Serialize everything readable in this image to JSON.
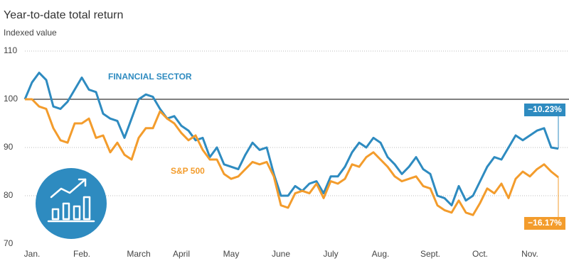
{
  "chart_data": {
    "type": "line",
    "title": "Year-to-date total return",
    "subtitle": "Indexed value",
    "categories": [
      null,
      "Jan.",
      null,
      null,
      null,
      null,
      null,
      null,
      "Feb.",
      null,
      null,
      null,
      null,
      null,
      null,
      null,
      "March",
      null,
      null,
      null,
      null,
      null,
      "April",
      null,
      null,
      null,
      null,
      null,
      null,
      "May",
      null,
      null,
      null,
      null,
      null,
      null,
      "June",
      null,
      null,
      null,
      null,
      null,
      null,
      "July",
      null,
      null,
      null,
      null,
      null,
      null,
      "Aug.",
      null,
      null,
      null,
      null,
      null,
      null,
      "Sept.",
      null,
      null,
      null,
      null,
      null,
      null,
      "Oct.",
      null,
      null,
      null,
      null,
      null,
      null,
      "Nov.",
      null,
      null,
      null,
      null
    ],
    "series": [
      {
        "name": "FINANCIAL SECTOR",
        "color": "#2e8bc0",
        "end_label": "−10.23%",
        "values": [
          100,
          103.5,
          105.5,
          104,
          98.5,
          98,
          99.5,
          102,
          104.5,
          102,
          101.5,
          97,
          96,
          95.5,
          92,
          96,
          100,
          101,
          100.5,
          98,
          96,
          96.5,
          94.5,
          93.5,
          91.5,
          92,
          88,
          90,
          86.5,
          86,
          85.5,
          88.5,
          91,
          89.5,
          90,
          84.5,
          80,
          80,
          82,
          81,
          82.5,
          83,
          80.5,
          84,
          84,
          86,
          89,
          91,
          90,
          92,
          91,
          88,
          86.5,
          84.5,
          86,
          88,
          85.5,
          84.5,
          80,
          79.5,
          78,
          82,
          79,
          80,
          83,
          86,
          88,
          87.5,
          90,
          92.5,
          91.5,
          92.5,
          93.5,
          94,
          90,
          89.77
        ]
      },
      {
        "name": "S&P 500",
        "color": "#f39c2c",
        "end_label": "−16.17%",
        "values": [
          100,
          100,
          98.5,
          98,
          94,
          91.5,
          91,
          95,
          95,
          96,
          92,
          92.5,
          89,
          91,
          88.5,
          87.5,
          92,
          94,
          94,
          97.5,
          96,
          95,
          93,
          91.5,
          92.5,
          89.5,
          87.5,
          87.5,
          84.5,
          83.5,
          84,
          85.5,
          87,
          86.5,
          87,
          84,
          78,
          77.5,
          80.5,
          81,
          80.5,
          82.5,
          79.5,
          83,
          82.5,
          83.5,
          86.5,
          86,
          88,
          89,
          87.5,
          86,
          84,
          83,
          83.5,
          84,
          82,
          81.5,
          78,
          77,
          76.5,
          79,
          76.5,
          76,
          78.5,
          81.5,
          80.5,
          82.5,
          79.5,
          83.5,
          85,
          84,
          85.5,
          86.5,
          85,
          83.83
        ]
      }
    ],
    "ylim": [
      70,
      110
    ],
    "yticks": [
      70,
      80,
      90,
      100,
      110
    ],
    "baseline": 100,
    "grid": true
  }
}
